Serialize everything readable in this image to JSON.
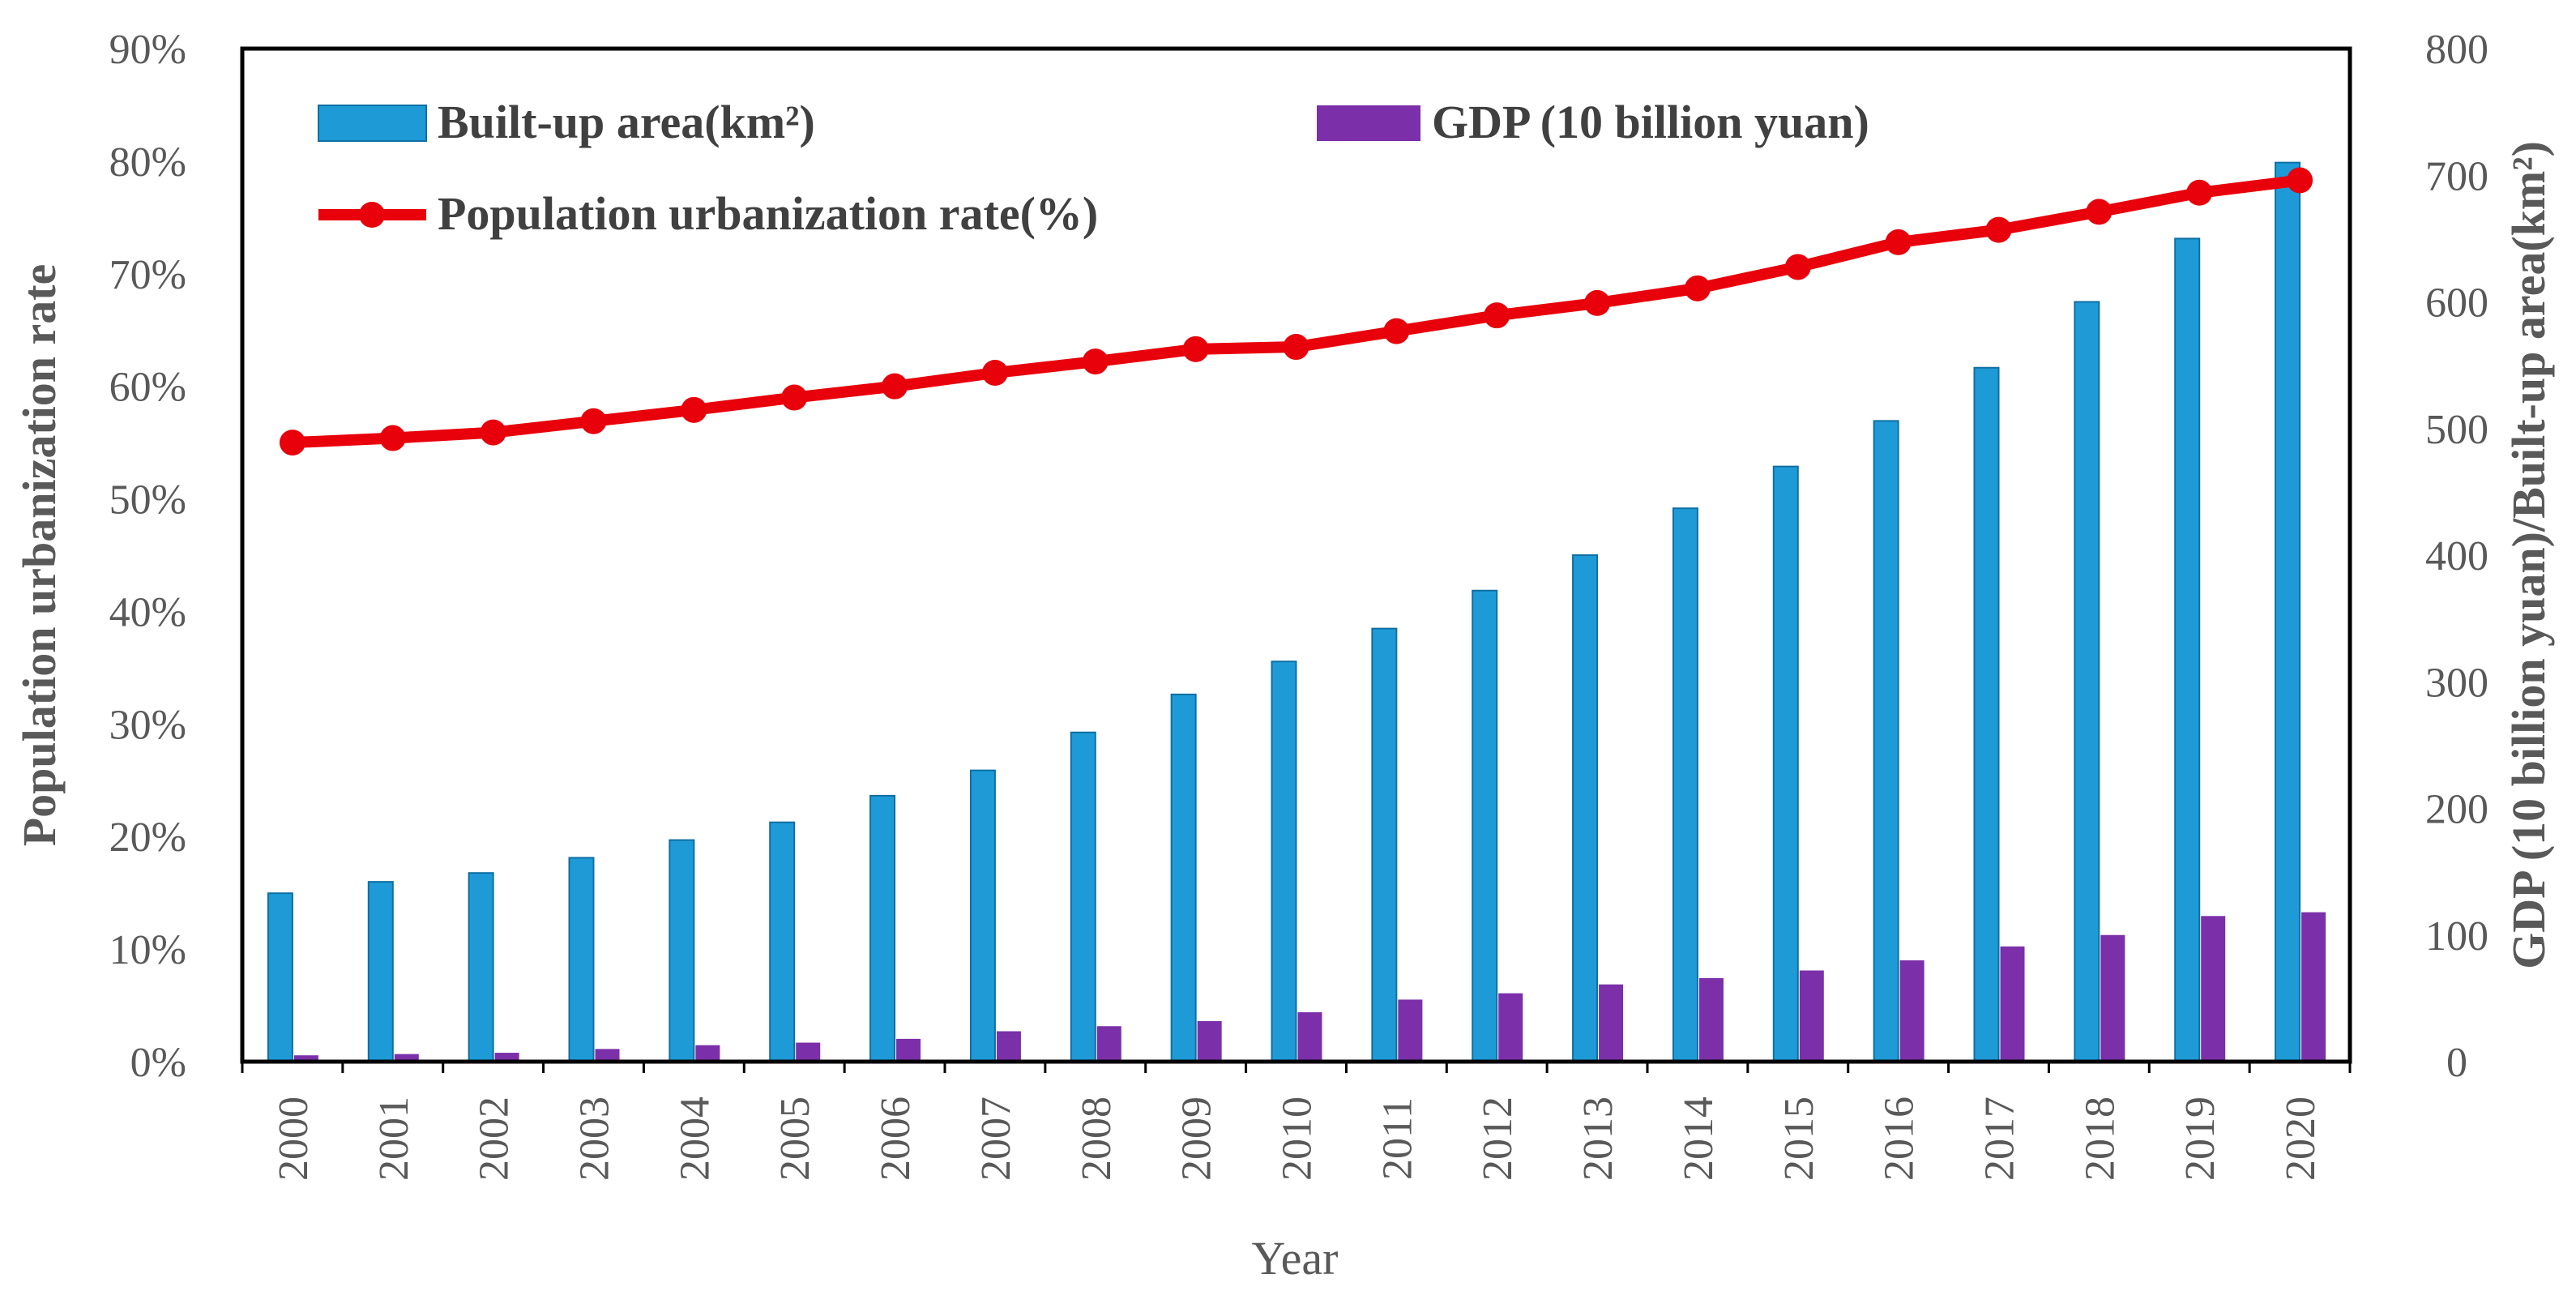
{
  "chart_data": {
    "type": "bar+line",
    "title": "",
    "xlabel": "Year",
    "ylabel_left": "Population urbanization rate",
    "ylabel_right": "GDP (10 billion yuan)/Built-up area(km²)",
    "categories": [
      "2000",
      "2001",
      "2002",
      "2003",
      "2004",
      "2005",
      "2006",
      "2007",
      "2008",
      "2009",
      "2010",
      "2011",
      "2012",
      "2013",
      "2014",
      "2015",
      "2016",
      "2017",
      "2018",
      "2019",
      "2020"
    ],
    "y_left": {
      "min": 0,
      "max": 90,
      "step": 10,
      "ticks": [
        "0%",
        "10%",
        "20%",
        "30%",
        "40%",
        "50%",
        "60%",
        "70%",
        "80%",
        "90%"
      ]
    },
    "y_right": {
      "min": 0,
      "max": 800,
      "step": 100,
      "ticks": [
        "0",
        "100",
        "200",
        "300",
        "400",
        "500",
        "600",
        "700",
        "800"
      ]
    },
    "series": [
      {
        "name": "Built-up area(km²)",
        "type": "bar",
        "axis": "right",
        "color": "#1E9BD7",
        "values": [
          133,
          142,
          149,
          161,
          175,
          189,
          210,
          230,
          260,
          290,
          316,
          342,
          372,
          400,
          437,
          470,
          506,
          548,
          600,
          650,
          710
        ]
      },
      {
        "name": "GDP (10 billion yuan)",
        "type": "bar",
        "axis": "right",
        "color": "#7B2FA8",
        "values": [
          5,
          6,
          7,
          10,
          13,
          15,
          18,
          24,
          28,
          32,
          39,
          49,
          54,
          61,
          66,
          72,
          80,
          91,
          100,
          115,
          118
        ]
      },
      {
        "name": "Population urbanization rate(%)",
        "type": "line",
        "axis": "left",
        "color": "#E8000B",
        "values": [
          55.0,
          55.4,
          55.9,
          56.9,
          57.9,
          59.0,
          60.0,
          61.2,
          62.2,
          63.3,
          63.5,
          64.9,
          66.3,
          67.4,
          68.7,
          70.6,
          72.8,
          73.9,
          75.5,
          77.2,
          78.3
        ]
      }
    ],
    "legend": {
      "placement": "top-left-inside"
    }
  }
}
